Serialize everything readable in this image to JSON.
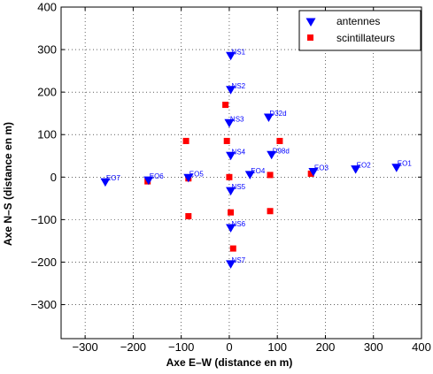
{
  "chart_data": {
    "type": "scatter",
    "xlabel": "Axe E–W (distance en m)",
    "ylabel": "Axe N–S (distance en m)",
    "xlim": [
      -350,
      400
    ],
    "ylim": [
      -380,
      400
    ],
    "xticks": [
      -300,
      -200,
      -100,
      0,
      100,
      200,
      300,
      400
    ],
    "yticks": [
      -300,
      -200,
      -100,
      0,
      100,
      200,
      300,
      400
    ],
    "tick_labels_x": [
      "−300",
      "−200",
      "−100",
      "0",
      "100",
      "200",
      "300",
      "400"
    ],
    "tick_labels_y": [
      "−300",
      "−200",
      "−100",
      "0",
      "100",
      "200",
      "300",
      "400"
    ],
    "grid": true,
    "legend_position": "top-right",
    "colors": {
      "antennes": "#0000ff",
      "scintillateurs": "#ff0000",
      "labels": "#0000ff"
    },
    "series": [
      {
        "name": "antennes",
        "marker": "triangle-down",
        "points": [
          {
            "label": "NS1",
            "x": 3,
            "y": 285
          },
          {
            "label": "NS2",
            "x": 3,
            "y": 205
          },
          {
            "label": "NS3",
            "x": 0,
            "y": 127
          },
          {
            "label": "D32d",
            "x": 82,
            "y": 140
          },
          {
            "label": "NS4",
            "x": 3,
            "y": 50
          },
          {
            "label": "D98d",
            "x": 88,
            "y": 52
          },
          {
            "label": "EO1",
            "x": 348,
            "y": 22
          },
          {
            "label": "EO2",
            "x": 263,
            "y": 18
          },
          {
            "label": "EO3",
            "x": 175,
            "y": 12
          },
          {
            "label": "EO4",
            "x": 43,
            "y": 5
          },
          {
            "label": "EO5",
            "x": -85,
            "y": -2
          },
          {
            "label": "EO6",
            "x": -168,
            "y": -8
          },
          {
            "label": "EO7",
            "x": -258,
            "y": -12
          },
          {
            "label": "NS5",
            "x": 3,
            "y": -33
          },
          {
            "label": "NS6",
            "x": 3,
            "y": -120
          },
          {
            "label": "NS7",
            "x": 3,
            "y": -205
          }
        ]
      },
      {
        "name": "scintillateurs",
        "marker": "square",
        "points": [
          {
            "x": -8,
            "y": 170
          },
          {
            "x": -90,
            "y": 85
          },
          {
            "x": -5,
            "y": 85
          },
          {
            "x": 105,
            "y": 85
          },
          {
            "x": 85,
            "y": 5
          },
          {
            "x": 170,
            "y": 8
          },
          {
            "x": -85,
            "y": -3
          },
          {
            "x": -170,
            "y": -10
          },
          {
            "x": 0,
            "y": 0
          },
          {
            "x": 85,
            "y": -80
          },
          {
            "x": 3,
            "y": -83
          },
          {
            "x": -85,
            "y": -92
          },
          {
            "x": 8,
            "y": -168
          }
        ]
      }
    ]
  }
}
